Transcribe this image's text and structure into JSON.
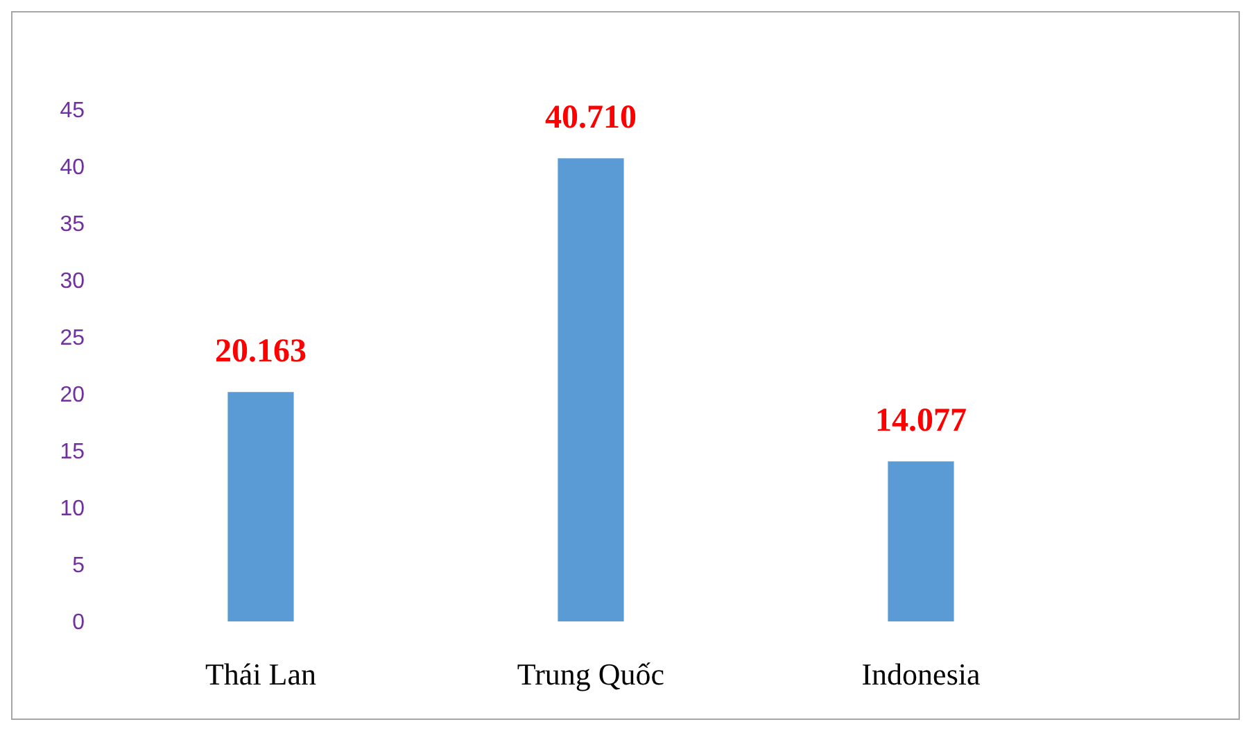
{
  "chart_data": {
    "type": "bar",
    "categories": [
      "Thái Lan",
      "Trung Quốc",
      "Indonesia"
    ],
    "values": [
      20.163,
      40.71,
      14.077
    ],
    "value_labels": [
      "20.163",
      "40.710",
      "14.077"
    ],
    "color": "#5b9bd5",
    "ylim": [
      0,
      45
    ],
    "yticks": [
      0,
      5,
      10,
      15,
      20,
      25,
      30,
      35,
      40,
      45
    ],
    "grid": false,
    "legend": false
  }
}
